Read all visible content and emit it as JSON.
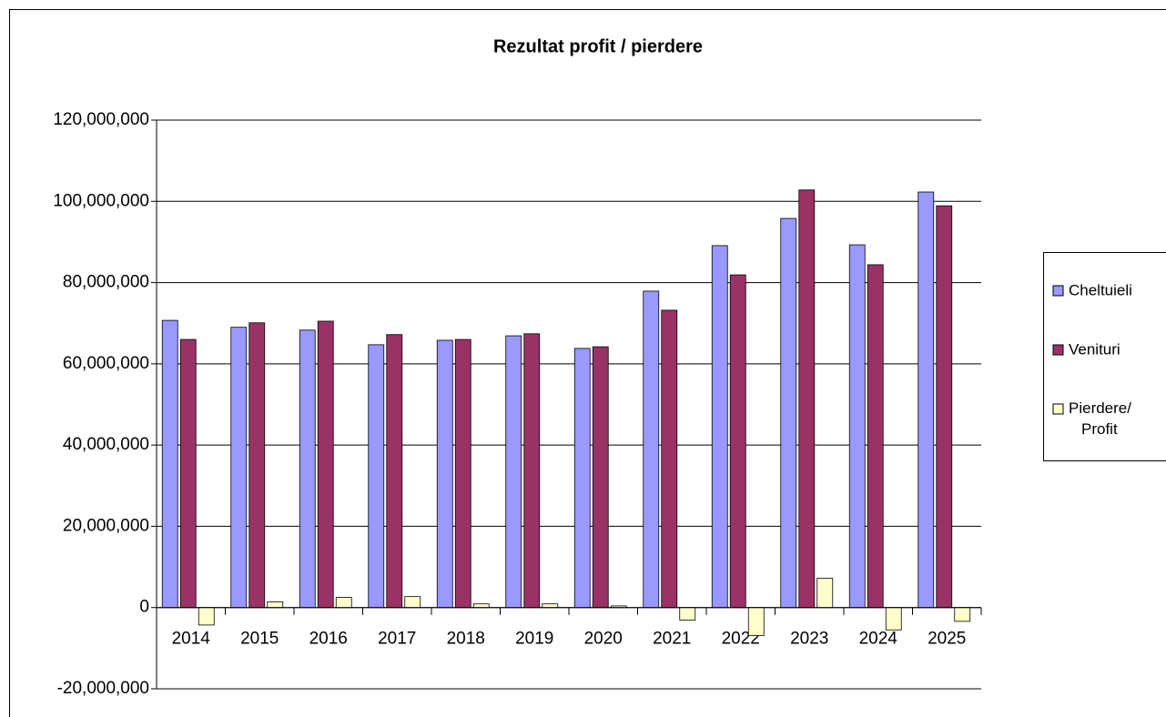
{
  "chart_data": {
    "type": "bar",
    "title": "Rezultat profit / pierdere",
    "categories": [
      "2014",
      "2015",
      "2016",
      "2017",
      "2018",
      "2019",
      "2020",
      "2021",
      "2022",
      "2023",
      "2024",
      "2025"
    ],
    "series": [
      {
        "name": "Cheltuieli",
        "color": "#9999ff",
        "values": [
          70700000,
          69000000,
          68300000,
          64700000,
          65800000,
          66900000,
          63800000,
          77900000,
          89100000,
          95800000,
          89300000,
          102300000
        ]
      },
      {
        "name": "Venituri",
        "color": "#993366",
        "values": [
          66000000,
          70100000,
          70500000,
          67200000,
          66000000,
          67400000,
          64200000,
          73200000,
          81900000,
          102800000,
          84400000,
          98900000
        ]
      },
      {
        "name": "Pierdere/ Profit",
        "color": "#ffffcc",
        "values": [
          -4300000,
          1400000,
          2500000,
          2700000,
          900000,
          900000,
          400000,
          -3100000,
          -6900000,
          7200000,
          -5500000,
          -3400000
        ]
      }
    ],
    "ylim": [
      -20000000,
      120000000
    ],
    "yticks": [
      {
        "value": -20000000,
        "label": "-20,000,000"
      },
      0,
      {
        "value": 20000000,
        "label": "20,000,000"
      },
      {
        "value": 40000000,
        "label": "40,000,000"
      },
      {
        "value": 60000000,
        "label": "60,000,000"
      },
      {
        "value": 80000000,
        "label": "80,000,000"
      },
      {
        "value": 100000000,
        "label": "100,000,000"
      },
      {
        "value": 120000000,
        "label": "120,000,000"
      }
    ],
    "grid": true,
    "legend": "right"
  }
}
